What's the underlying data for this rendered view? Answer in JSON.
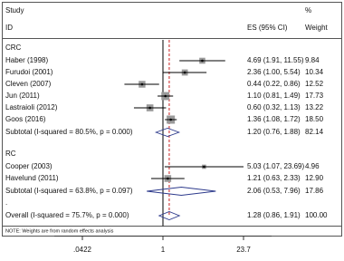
{
  "chart_data": {
    "type": "forest",
    "headers": {
      "study": "Study",
      "id": "ID",
      "es": "ES (95% CI)",
      "pct": "%",
      "weight": "Weight"
    },
    "log_scale": true,
    "xlim": [
      0.0422,
      23.7
    ],
    "xticks": [
      {
        "value": 0.0422,
        "label": ".0422"
      },
      1,
      {
        "value": 23.7,
        "label": "23.7"
      }
    ],
    "null_line": 1,
    "box_color": "#9a9a9a",
    "diamond_color": "#2d3a8c",
    "overall_line_color": "#cc2222",
    "rows": [
      {
        "kind": "group",
        "label": "CRC"
      },
      {
        "kind": "study",
        "label": "Haber (1998)",
        "es": 4.69,
        "lo": 1.91,
        "hi": 11.55,
        "es_ci": "4.69 (1.91, 11.55)",
        "weight": 9.84,
        "weight_label": "9.84"
      },
      {
        "kind": "study",
        "label": "Furudoi (2001)",
        "es": 2.36,
        "lo": 1.0,
        "hi": 5.54,
        "es_ci": "2.36 (1.00, 5.54)",
        "weight": 10.34,
        "weight_label": "10.34"
      },
      {
        "kind": "study",
        "label": "Cleven (2007)",
        "es": 0.44,
        "lo": 0.22,
        "hi": 0.86,
        "es_ci": "0.44 (0.22, 0.86)",
        "weight": 12.52,
        "weight_label": "12.52"
      },
      {
        "kind": "study",
        "label": "Jun (2011)",
        "es": 1.1,
        "lo": 0.81,
        "hi": 1.49,
        "es_ci": "1.10 (0.81, 1.49)",
        "weight": 17.73,
        "weight_label": "17.73"
      },
      {
        "kind": "study",
        "label": "Lastraioli (2012)",
        "es": 0.6,
        "lo": 0.32,
        "hi": 1.13,
        "es_ci": "0.60 (0.32, 1.13)",
        "weight": 13.22,
        "weight_label": "13.22"
      },
      {
        "kind": "study",
        "label": "Goos (2016)",
        "es": 1.36,
        "lo": 1.08,
        "hi": 1.72,
        "es_ci": "1.36 (1.08, 1.72)",
        "weight": 18.5,
        "weight_label": "18.50"
      },
      {
        "kind": "subtotal",
        "label": "Subtotal  (I-squared = 80.5%, p = 0.000)",
        "es": 1.2,
        "lo": 0.76,
        "hi": 1.88,
        "es_ci": "1.20 (0.76, 1.88)",
        "weight": 82.14,
        "weight_label": "82.14"
      },
      {
        "kind": "group",
        "label": "RC"
      },
      {
        "kind": "study",
        "label": "Cooper (2003)",
        "es": 5.03,
        "lo": 1.07,
        "hi": 23.69,
        "es_ci": "5.03 (1.07, 23.69)",
        "weight": 4.96,
        "weight_label": "4.96"
      },
      {
        "kind": "study",
        "label": "Havelund (2011)",
        "es": 1.21,
        "lo": 0.63,
        "hi": 2.33,
        "es_ci": "1.21 (0.63, 2.33)",
        "weight": 12.9,
        "weight_label": "12.90"
      },
      {
        "kind": "subtotal",
        "label": "Subtotal  (I-squared = 63.8%, p = 0.097)",
        "es": 2.06,
        "lo": 0.53,
        "hi": 7.96,
        "es_ci": "2.06 (0.53, 7.96)",
        "weight": 17.86,
        "weight_label": "17.86"
      },
      {
        "kind": "group",
        "label": "."
      },
      {
        "kind": "overall",
        "label": "Overall  (I-squared = 75.7%, p = 0.000)",
        "es": 1.28,
        "lo": 0.86,
        "hi": 1.91,
        "es_ci": "1.28 (0.86, 1.91)",
        "weight": 100,
        "weight_label": "100.00"
      }
    ],
    "note": "NOTE: Weights are from random effects analysis"
  }
}
